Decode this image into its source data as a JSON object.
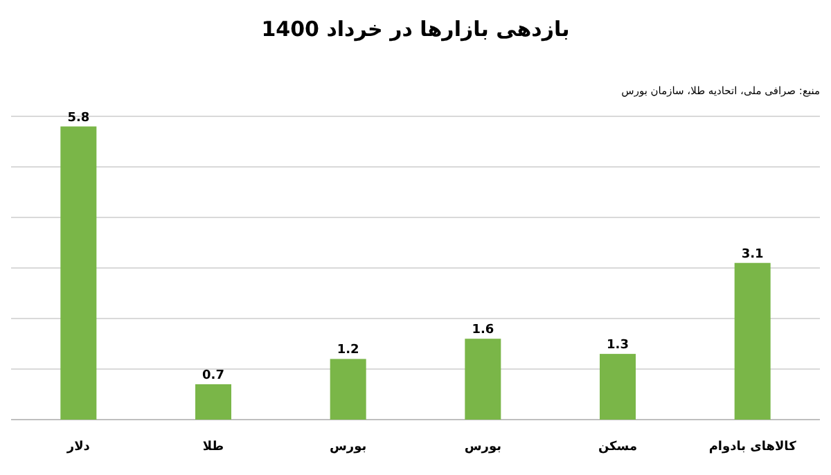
{
  "chart_data": {
    "type": "bar",
    "title": "بازدهی بازارها در خرداد 1400",
    "annotations": [
      "منبع: صرافی ملی، اتحادیه طلا، سازمان بورس"
    ],
    "categories": [
      "دلار",
      "طلا",
      "بورس",
      "بورس",
      "مسکن",
      "کالاهای بادوام"
    ],
    "values": [
      5.8,
      0.7,
      1.2,
      1.6,
      1.3,
      3.1
    ],
    "color": "#7ab648",
    "ylim": [
      0,
      6
    ],
    "yticks": [
      {
        "value": 0,
        "label": null
      },
      {
        "value": 1,
        "label": null
      },
      {
        "value": 2,
        "label": null
      },
      {
        "value": 3,
        "label": null
      },
      {
        "value": 4,
        "label": null
      },
      {
        "value": 5,
        "label": null
      },
      {
        "value": 6,
        "label": null
      }
    ],
    "grid": "y",
    "data_labels": true,
    "tick_labels": "x"
  }
}
